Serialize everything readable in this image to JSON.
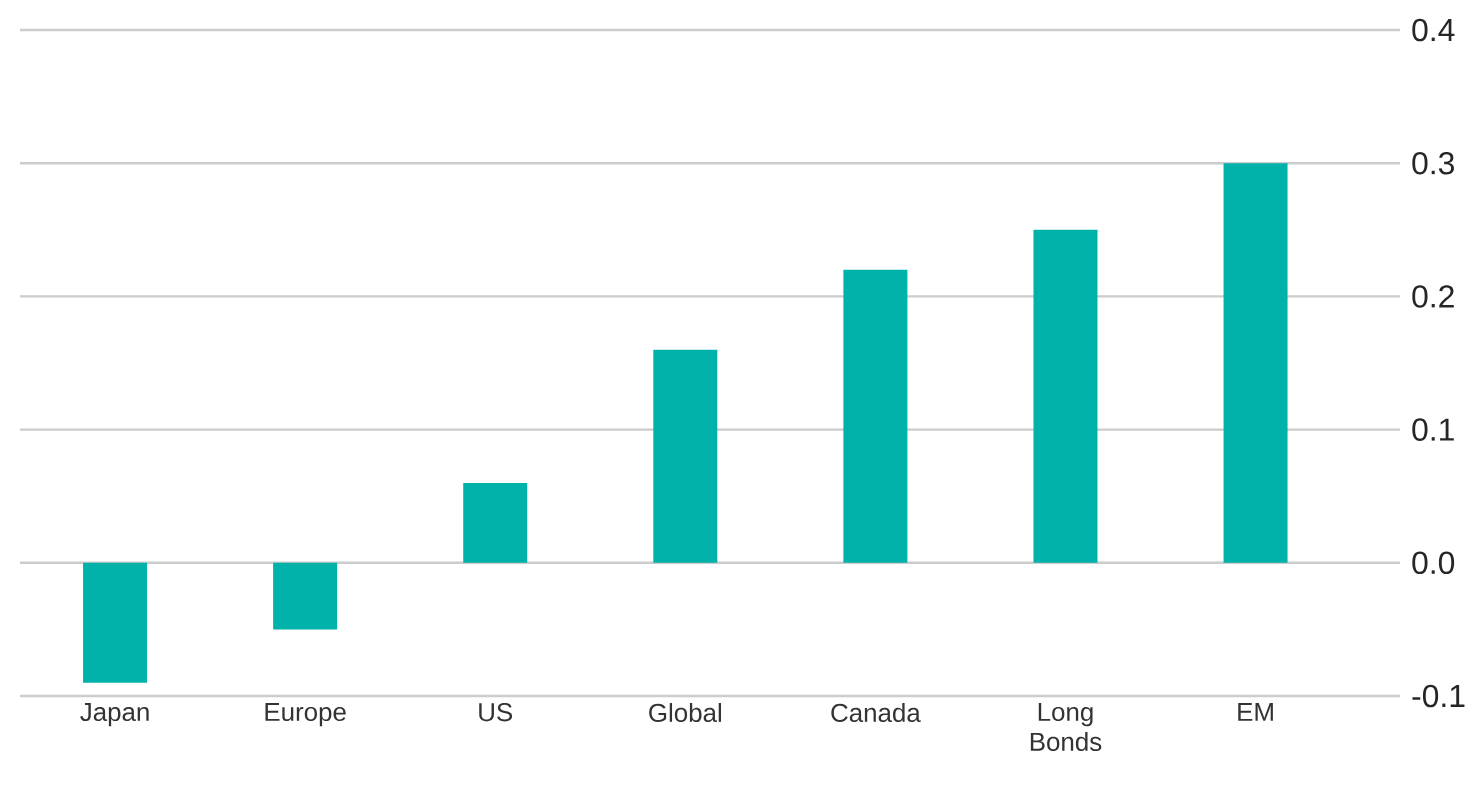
{
  "chart_data": {
    "type": "bar",
    "categories": [
      "Japan",
      "Europe",
      "US",
      "Global",
      "Canada",
      "Long Bonds",
      "EM"
    ],
    "values": [
      -0.09,
      -0.05,
      0.06,
      0.16,
      0.22,
      0.25,
      0.3
    ],
    "color": "#00b2a9",
    "ylim": [
      -0.1,
      0.4
    ],
    "yticks": [
      -0.1,
      {
        "value": 0,
        "label": "0.0"
      },
      0.1,
      0.2,
      0.3,
      0.4
    ],
    "grid": "y"
  }
}
